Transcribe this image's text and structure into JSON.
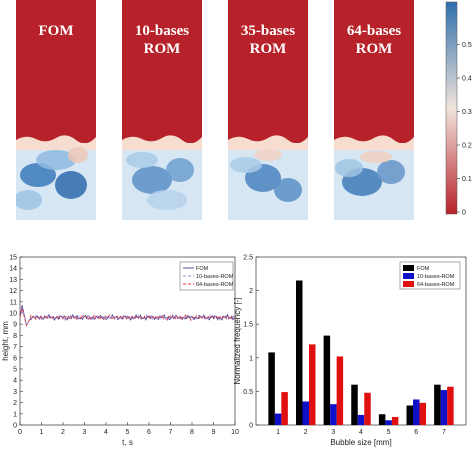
{
  "panels": [
    {
      "label": "FOM"
    },
    {
      "label": "10-bases\nROM"
    },
    {
      "label": "35-bases\nROM"
    },
    {
      "label": "64-bases\nROM"
    }
  ],
  "colorbar": {
    "ticks": [
      "0",
      "0.1",
      "0.2",
      "0.3",
      "0.4",
      "0.5"
    ],
    "colors": {
      "high": "#b7222a",
      "mid": "#f1e4dc",
      "low": "#2f6fab"
    }
  },
  "chart_data": [
    {
      "type": "line",
      "xlabel": "t, s",
      "ylabel": "height, mm",
      "xlim": [
        0,
        10
      ],
      "ylim": [
        0,
        15
      ],
      "xticks": [
        "0",
        "1",
        "2",
        "3",
        "4",
        "5",
        "6",
        "7",
        "8",
        "9",
        "10"
      ],
      "yticks": [
        "0",
        "1",
        "2",
        "3",
        "4",
        "5",
        "6",
        "7",
        "8",
        "9",
        "10",
        "11",
        "12",
        "13",
        "14",
        "15"
      ],
      "grid": false,
      "legend_position": "top-right",
      "series": [
        {
          "name": "FOM",
          "color": "#4b3a8c",
          "style": "solid",
          "initial_peak": 10.7,
          "steady_value": 9.6
        },
        {
          "name": "10-bases-ROM",
          "color": "#8f8fe0",
          "style": "dashed",
          "initial_peak": 10.5,
          "steady_value": 9.6
        },
        {
          "name": "64-bases-ROM",
          "color": "#e03030",
          "style": "dashed",
          "initial_peak": 10.4,
          "steady_value": 9.6
        }
      ]
    },
    {
      "type": "bar",
      "xlabel": "Bubble size [mm]",
      "ylabel": "Normalized frequency [-]",
      "categories": [
        "1",
        "2",
        "3",
        "4",
        "5",
        "6",
        "7"
      ],
      "ylim": [
        0,
        2.5
      ],
      "yticks": [
        "0",
        "0.5",
        "1",
        "1.5",
        "2",
        "2.5"
      ],
      "legend_position": "top-right",
      "series": [
        {
          "name": "FOM",
          "color": "#000000",
          "values": [
            1.08,
            2.15,
            1.33,
            0.6,
            0.16,
            0.29,
            0.6
          ]
        },
        {
          "name": "10-bases-ROM",
          "color": "#1010c8",
          "values": [
            0.17,
            0.35,
            0.31,
            0.15,
            0.07,
            0.38,
            0.52
          ]
        },
        {
          "name": "64-bases-ROM",
          "color": "#e01010",
          "values": [
            0.49,
            1.2,
            1.02,
            0.48,
            0.12,
            0.33,
            0.57
          ]
        }
      ]
    }
  ]
}
